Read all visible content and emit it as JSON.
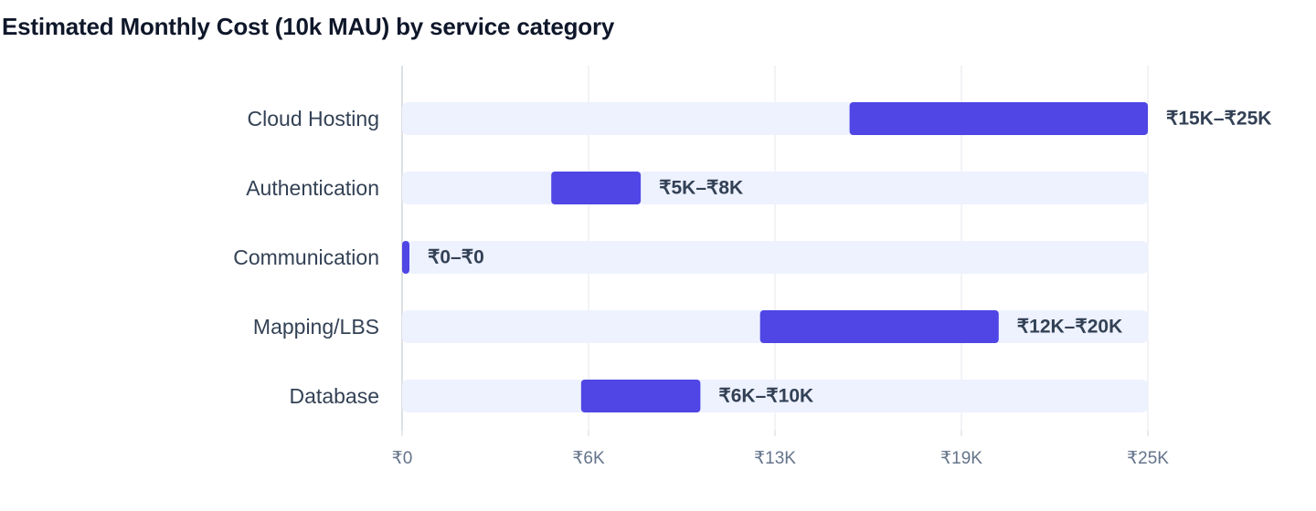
{
  "chart_data": {
    "type": "bar",
    "subtype": "range",
    "title": "Estimated Monthly Cost (10k MAU) by service category",
    "categories": [
      "Cloud Hosting",
      "Authentication",
      "Communication",
      "Mapping/LBS",
      "Database"
    ],
    "ranges": [
      [
        15000,
        25000
      ],
      [
        5000,
        8000
      ],
      [
        0,
        0
      ],
      [
        12000,
        20000
      ],
      [
        6000,
        10000
      ]
    ],
    "value_labels": [
      "₹15K–₹25K",
      "₹5K–₹8K",
      "₹0–₹0",
      "₹12K–₹20K",
      "₹6K–₹10K"
    ],
    "xlim": [
      0,
      25000
    ],
    "x_ticks": [
      0,
      6250,
      12500,
      18750,
      25000
    ],
    "x_tick_labels": [
      "₹0",
      "₹6K",
      "₹13K",
      "₹19K",
      "₹25K"
    ],
    "grid": true,
    "colors": {
      "bar": "#4f46e5",
      "track": "#eef2ff",
      "grid": "#e5e7eb",
      "axis": "#d1d5db",
      "category_text": "#334155",
      "value_text": "#334155",
      "tick_text": "#64748b",
      "title_text": "#0f172a"
    }
  }
}
